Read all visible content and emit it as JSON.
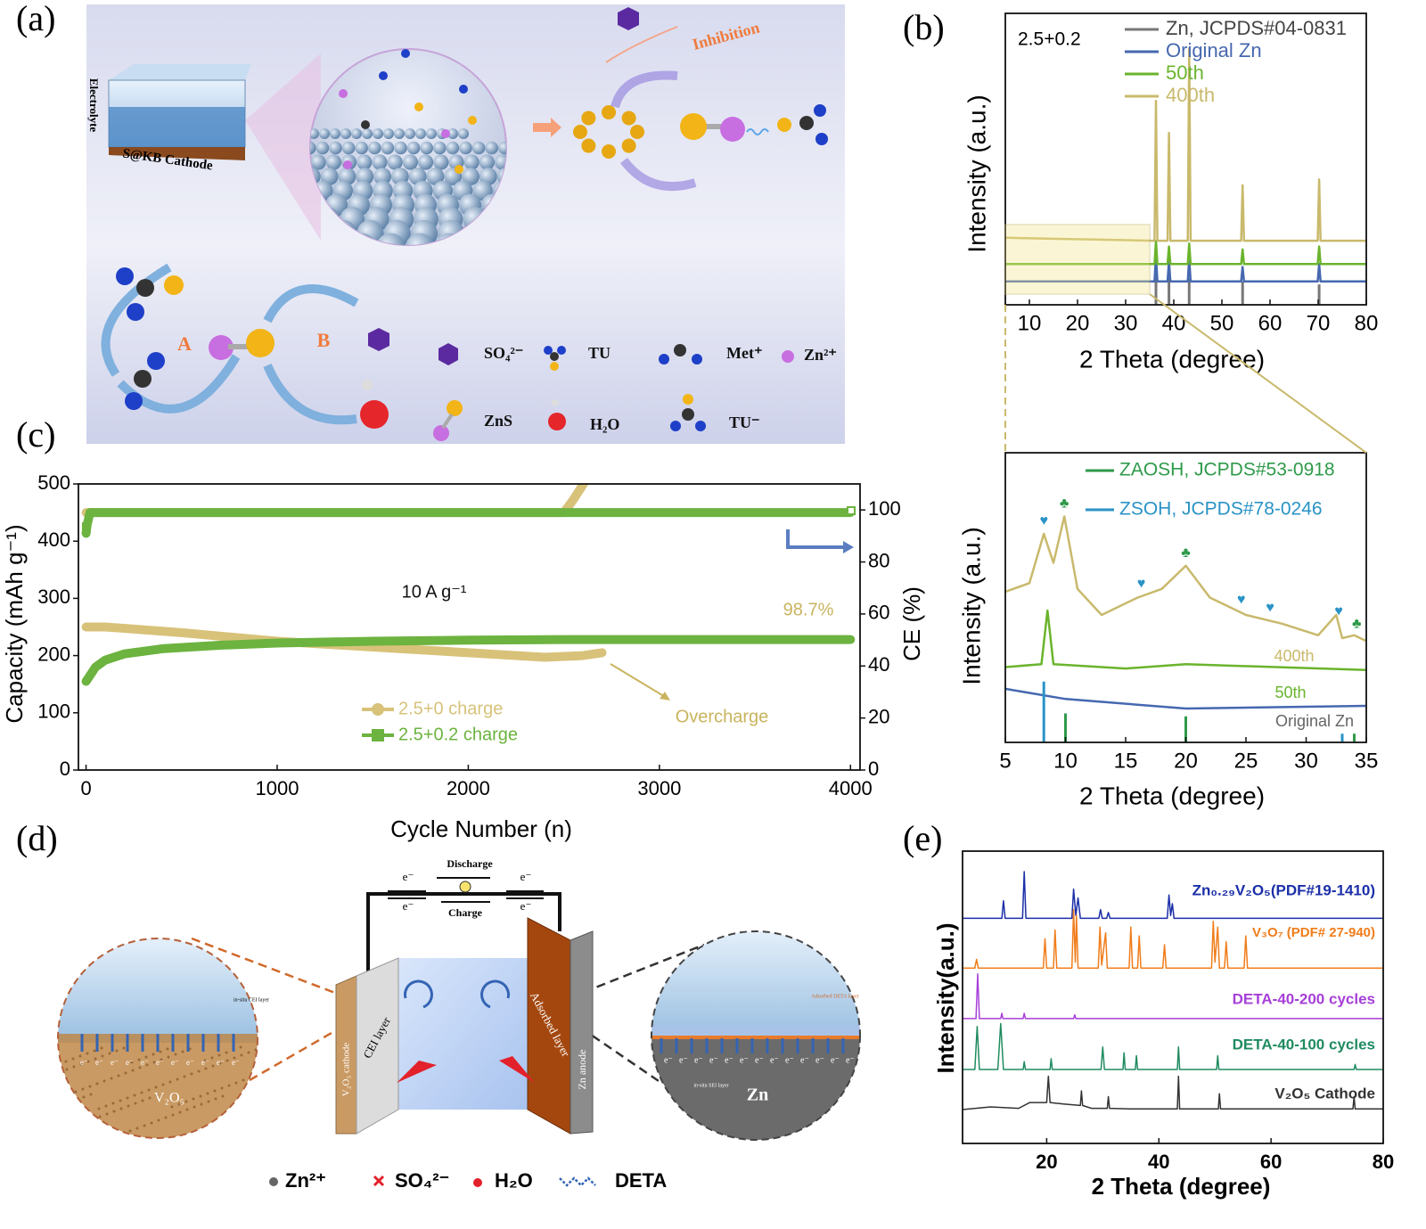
{
  "panel_labels": {
    "a": "(a)",
    "b": "(b)",
    "c": "(c)",
    "d": "(d)",
    "e": "(e)"
  },
  "panel_a": {
    "electrolyte": "Electrolyte",
    "cathode": "S@KB Cathode",
    "inhibition": "Inhibition",
    "path_a": "A",
    "path_b": "B",
    "legend": [
      "SO₄²⁻",
      "TU",
      "Met⁺",
      "Zn²⁺",
      "ZnS",
      "H₂O",
      "TU⁻"
    ]
  },
  "panel_d": {
    "discharge": "Discharge",
    "charge": "Charge",
    "electron": "e⁻",
    "cei_layer": "CEI layer",
    "cathode": "V₂O₅ cathode",
    "adsorbed": "Adsorbed layer",
    "anode": "Zn anode",
    "v2o5": "V₂O₅",
    "zn": "Zn",
    "in_situ_cei": "in-situ CEI layer",
    "in_situ_sei": "in-situ SEI layer",
    "adsorbed_deta": "Adsorbed DETA layer",
    "legend": [
      "Zn²⁺",
      "SO₄²⁻",
      "H₂O",
      "DETA"
    ]
  },
  "chart_data": [
    {
      "type": "line",
      "annotation": "2.5+0.2",
      "xlabel": "2 Theta (degree)",
      "ylabel": "Intensity (a.u.)",
      "xlim": [
        5,
        80
      ],
      "ylim": [
        0,
        100
      ],
      "xticks": [
        10,
        20,
        30,
        40,
        50,
        60,
        70,
        80
      ],
      "series": [
        {
          "name": "Zn, JCPDS#04-0831",
          "color": "#777777",
          "mode": "stick",
          "x": [
            36.3,
            39,
            43.2,
            54.3,
            70.2
          ],
          "values": [
            12,
            10,
            9,
            8,
            7
          ]
        },
        {
          "name": "Original Zn",
          "color": "#4668b0",
          "x": [
            5,
            36,
            36.3,
            36.6,
            38.7,
            39,
            39.3,
            42.9,
            43.2,
            43.5,
            54,
            54.3,
            54.6,
            69.9,
            70.2,
            70.5,
            80
          ],
          "values": [
            8,
            8,
            17,
            8,
            8,
            15,
            8,
            8,
            16,
            8,
            8,
            13,
            8,
            8,
            14,
            8,
            8
          ]
        },
        {
          "name": "50th",
          "color": "#6ab42d",
          "x": [
            5,
            36,
            36.3,
            36.6,
            38.7,
            39,
            39.3,
            42.9,
            43.2,
            43.5,
            54,
            54.3,
            54.6,
            69.9,
            70.2,
            70.5,
            80
          ],
          "values": [
            14,
            14,
            22,
            14,
            14,
            20,
            14,
            14,
            21,
            14,
            14,
            19,
            14,
            14,
            20,
            14,
            14
          ]
        },
        {
          "name": "400th",
          "color": "#c9b96c",
          "x": [
            5,
            36,
            36.3,
            36.6,
            38.7,
            39,
            39.3,
            42.9,
            43.2,
            43.5,
            54,
            54.3,
            54.6,
            69.9,
            70.2,
            70.5,
            80
          ],
          "values": [
            23,
            22,
            70,
            22,
            22,
            59,
            22,
            22,
            88,
            22,
            22,
            41,
            22,
            22,
            43,
            22,
            22
          ]
        }
      ]
    },
    {
      "type": "line",
      "xlabel": "2 Theta (degree)",
      "ylabel": "Intensity (a.u.)",
      "xlim": [
        5,
        35
      ],
      "ylim": [
        0,
        100
      ],
      "xticks": [
        5,
        10,
        15,
        20,
        25,
        30,
        35
      ],
      "series": [
        {
          "name": "400th",
          "color": "#c9b96c",
          "x": [
            5,
            7,
            8.2,
            9,
            9.9,
            11,
            13,
            16,
            18,
            20,
            22,
            25,
            28,
            31,
            32.5,
            33,
            34,
            35
          ],
          "values": [
            52,
            55,
            72,
            62,
            78,
            53,
            44,
            50,
            53,
            61,
            50,
            44,
            41,
            37,
            44,
            36,
            37,
            35
          ]
        },
        {
          "name": "50th",
          "color": "#6ab42d",
          "x": [
            5,
            8,
            8.5,
            9,
            15,
            20,
            35
          ],
          "values": [
            26,
            27,
            45.5,
            27,
            25.5,
            27,
            25
          ]
        },
        {
          "name": "Original Zn",
          "color": "#4668b0",
          "x": [
            5,
            10,
            20,
            35
          ],
          "values": [
            18.5,
            15,
            11.7,
            12.6
          ]
        },
        {
          "name": "ZAOSH, JCPDS#53-0918",
          "color": "#2f9a4a",
          "mode": "stick",
          "x": [
            10,
            20,
            34
          ],
          "values": [
            10,
            9,
            3
          ]
        },
        {
          "name": "ZSOH, JCPDS#78-0246",
          "color": "#2a93c6",
          "mode": "stick",
          "x": [
            8.2,
            33
          ],
          "values": [
            21,
            3
          ]
        }
      ],
      "markers": [
        {
          "symbol": "♥",
          "x": 8.2,
          "color": "#2a93c6"
        },
        {
          "symbol": "♣",
          "x": 9.9,
          "color": "#2f9a4a"
        },
        {
          "symbol": "♥",
          "x": 16.3,
          "color": "#2a93c6"
        },
        {
          "symbol": "♣",
          "x": 20,
          "color": "#2f9a4a"
        },
        {
          "symbol": "♥",
          "x": 24.6,
          "color": "#2a93c6"
        },
        {
          "symbol": "♥",
          "x": 27,
          "color": "#2a93c6"
        },
        {
          "symbol": "♥",
          "x": 32.7,
          "color": "#2a93c6"
        },
        {
          "symbol": "♣",
          "x": 34.2,
          "color": "#2f9a4a"
        }
      ]
    },
    {
      "type": "line",
      "xlabel": "Cycle Number (n)",
      "ylabel": "Capacity (mAh g⁻¹)",
      "y2label": "CE (%)",
      "annotations": [
        "10 A g⁻¹",
        "98.7%",
        "Overcharge"
      ],
      "xlim": [
        -40,
        4050
      ],
      "ylim": [
        0,
        500
      ],
      "y2lim": [
        0,
        110
      ],
      "xticks": [
        0,
        1000,
        2000,
        3000,
        4000
      ],
      "yticks": [
        0,
        100,
        200,
        300,
        400,
        500
      ],
      "y2ticks": [
        0,
        20,
        40,
        60,
        80,
        100
      ],
      "series": [
        {
          "name": "2.5+0 charge",
          "color": "#d8c27a",
          "marker": "circle",
          "x": [
            0,
            100,
            500,
            1000,
            1500,
            2000,
            2400,
            2600,
            2700
          ],
          "values": [
            250,
            250,
            240,
            225,
            215,
            205,
            197,
            200,
            205
          ]
        },
        {
          "name": "2.5+0.2 charge",
          "color": "#6cb33f",
          "marker": "square",
          "x": [
            0,
            20,
            50,
            100,
            200,
            400,
            700,
            1000,
            1500,
            2000,
            2500,
            3000,
            3500,
            4000
          ],
          "values": [
            155,
            165,
            180,
            192,
            203,
            212,
            218,
            222,
            225,
            227,
            228,
            228,
            228,
            228
          ]
        },
        {
          "color": "#d8c27a",
          "axis": "y2",
          "x": [
            0,
            2500,
            2550,
            2620
          ],
          "values": [
            99,
            99,
            104,
            112
          ]
        },
        {
          "color": "#6cb33f",
          "axis": "y2",
          "x": [
            0,
            5,
            20,
            4000
          ],
          "values": [
            91,
            94,
            99,
            99
          ]
        }
      ]
    },
    {
      "type": "line",
      "xlabel": "2 Theta (degree)",
      "ylabel": "Intensity(a.u.)",
      "xlim": [
        5,
        80
      ],
      "ylim": [
        0,
        100
      ],
      "xticks": [
        20,
        40,
        60,
        80
      ],
      "series": [
        {
          "name": "Zn₀.₂₉V₂O₅(PDF#19-1410)",
          "color": "#1b2fa8",
          "x": [
            5,
            12,
            12.3,
            12.6,
            15.7,
            16,
            16.3,
            24.5,
            24.8,
            25.2,
            25.6,
            26,
            29.3,
            29.6,
            29.9,
            30.7,
            31,
            31.3,
            41.5,
            41.8,
            42.1,
            42.4,
            42.7,
            80
          ],
          "values": [
            77,
            77,
            83,
            77,
            77,
            93,
            77,
            77,
            87,
            78,
            84,
            77,
            77,
            80,
            77,
            77,
            79,
            77,
            77,
            85,
            78,
            82,
            77,
            77
          ]
        },
        {
          "name": "V₃O₇ (PDF# 27-940)",
          "color": "#f07d1b",
          "x": [
            5,
            7.2,
            7.5,
            7.8,
            19.4,
            19.7,
            20,
            21.2,
            21.5,
            21.8,
            24.5,
            24.8,
            25.1,
            25.3,
            25.6,
            29.2,
            29.5,
            29.8,
            30.5,
            30.8,
            34.7,
            35,
            35.3,
            36.2,
            36.5,
            36.8,
            40.7,
            41,
            41.3,
            49.4,
            49.7,
            50,
            50.5,
            50.8,
            51.7,
            52,
            52.3,
            55.2,
            55.5,
            55.8,
            80
          ],
          "values": [
            60,
            60,
            63,
            60,
            60,
            70,
            60,
            60,
            73,
            60,
            60,
            80,
            62,
            78,
            60,
            60,
            74,
            61,
            72,
            60,
            60,
            74,
            60,
            60,
            71,
            60,
            60,
            68,
            60,
            60,
            76,
            62,
            74,
            60,
            60,
            69,
            60,
            60,
            71,
            60,
            60
          ]
        },
        {
          "name": "DETA-40-200 cycles",
          "color": "#a63fd8",
          "x": [
            5,
            7.4,
            7.7,
            8,
            11.8,
            12,
            12.2,
            15.8,
            16,
            16.2,
            24.8,
            25,
            25.2,
            80
          ],
          "values": [
            42.7,
            42.7,
            58,
            42.7,
            42.7,
            44.5,
            42.7,
            42.7,
            44.5,
            42.7,
            42.7,
            44,
            42.7,
            42.7
          ]
        },
        {
          "name": "DETA-40-100 cycles",
          "color": "#1f8b5f",
          "x": [
            5,
            7.2,
            7.6,
            8,
            11.3,
            11.8,
            12.3,
            15.8,
            16,
            16.2,
            20.6,
            20.8,
            21,
            29.7,
            30,
            30.3,
            33.6,
            33.8,
            34,
            35.8,
            36,
            36.2,
            43.3,
            43.5,
            43.7,
            50.3,
            50.5,
            50.7,
            74.8,
            75,
            75.2,
            80
          ],
          "values": [
            25.3,
            25.3,
            40,
            25.3,
            25.3,
            41,
            25.3,
            25.3,
            28,
            25.3,
            25.3,
            29,
            25.3,
            25.3,
            33,
            25.3,
            25.3,
            31,
            25.3,
            25.3,
            30,
            25.3,
            25.3,
            33,
            25.3,
            25.3,
            30,
            25.3,
            25.3,
            27,
            25.3,
            25.3
          ]
        },
        {
          "name": "V₂O₅ Cathode",
          "color": "#333333",
          "x": [
            5,
            10,
            15,
            17,
            20,
            20.3,
            20.6,
            23,
            26,
            26.2,
            26.4,
            28,
            30.8,
            31,
            31.2,
            35,
            43.3,
            43.5,
            43.7,
            50.6,
            50.8,
            51,
            60,
            74.6,
            74.8,
            75,
            80
          ],
          "values": [
            11.6,
            12.5,
            12,
            14,
            14,
            23,
            14,
            13.5,
            13,
            18,
            13,
            12,
            12,
            16,
            12,
            11.8,
            11.8,
            23,
            11.8,
            11.8,
            17,
            11.8,
            11.8,
            11.8,
            16,
            11.8,
            11.8
          ]
        }
      ]
    }
  ]
}
